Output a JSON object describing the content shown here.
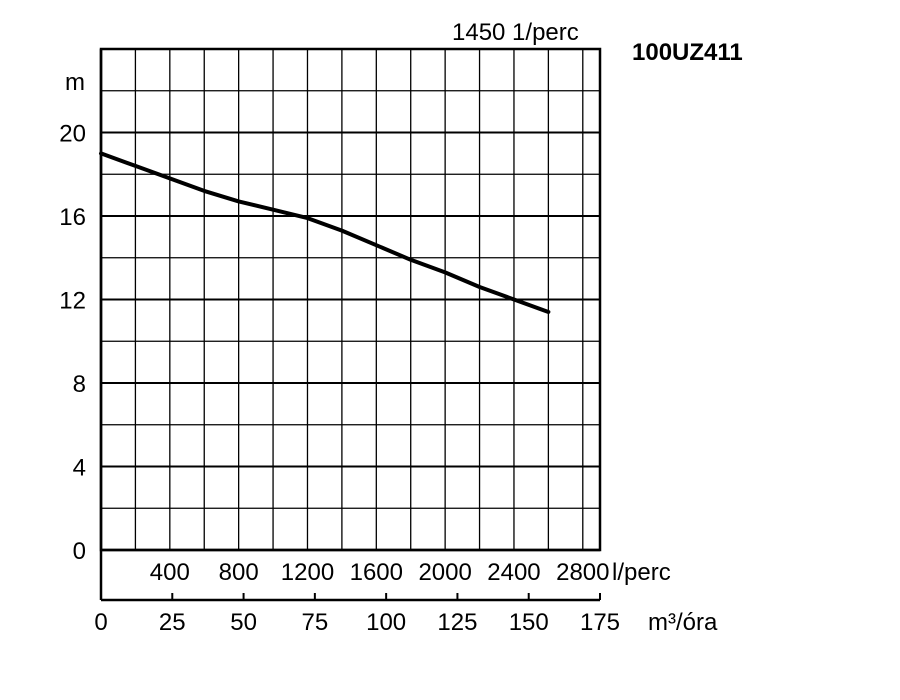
{
  "chart_data": {
    "type": "line",
    "title": "100UZ411",
    "subtitle": "1450 1/perc",
    "ylabel": "m",
    "ylim": [
      0,
      24
    ],
    "yticks": [
      "0",
      "4",
      "8",
      "12",
      "16",
      "20"
    ],
    "x_top": {
      "label": "l/perc",
      "lim": [
        0,
        2900
      ],
      "ticks": [
        400,
        800,
        1200,
        1600,
        2000,
        2400,
        2800
      ],
      "tick_labels": [
        "400",
        "800",
        "1200",
        "1600",
        "2000",
        "2400",
        "2800"
      ]
    },
    "x_bottom": {
      "label": "m³/óra",
      "lim": [
        0,
        175
      ],
      "ticks": [
        0,
        25,
        50,
        75,
        100,
        125,
        150,
        175
      ],
      "tick_labels": [
        "0",
        "25",
        "50",
        "75",
        "100",
        "125",
        "150",
        "175"
      ]
    },
    "grid": true,
    "series": [
      {
        "x_unit": "l/perc",
        "x": [
          0,
          200,
          400,
          600,
          800,
          1000,
          1200,
          1400,
          1600,
          1800,
          2000,
          2200,
          2400,
          2600
        ],
        "y": [
          19.0,
          18.4,
          17.8,
          17.2,
          16.7,
          16.3,
          15.9,
          15.3,
          14.6,
          13.9,
          13.3,
          12.6,
          12.0,
          11.4
        ]
      }
    ]
  }
}
